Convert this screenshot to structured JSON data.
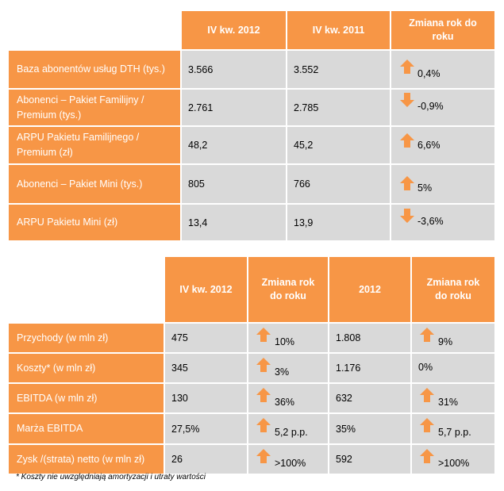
{
  "colors": {
    "header": "#f79646",
    "cell": "#d9d9d9",
    "arrow": "#f79646"
  },
  "table1": {
    "headers": [
      "IV kw. 2012",
      "IV kw. 2011",
      "Zmiana rok do roku"
    ],
    "rows": [
      {
        "label": "Baza abonentów usług DTH (tys.)",
        "v1": "3.566",
        "v2": "3.552",
        "change": "0,4%",
        "arrow": "up"
      },
      {
        "label": "Abonenci – Pakiet Familijny / Premium (tys.)",
        "v1": "2.761",
        "v2": "2.785",
        "change": "-0,9%",
        "arrow": "down"
      },
      {
        "label": "ARPU Pakietu Familijnego / Premium (zł)",
        "v1": "48,2",
        "v2": "45,2",
        "change": "6,6%",
        "arrow": "up"
      },
      {
        "label": "Abonenci – Pakiet Mini (tys.)",
        "v1": "805",
        "v2": "766",
        "change": "5%",
        "arrow": "up"
      },
      {
        "label": "ARPU Pakietu Mini (zł)",
        "v1": "13,4",
        "v2": "13,9",
        "change": "-3,6%",
        "arrow": "down"
      }
    ]
  },
  "table2": {
    "headers": [
      "IV kw. 2012",
      "Zmiana rok do roku",
      "2012",
      "Zmiana rok do roku"
    ],
    "rows": [
      {
        "label": "Przychody (w mln zł)",
        "q": "475",
        "qchange": "10%",
        "qarrow": "up",
        "y": "1.808",
        "ychange": "9%",
        "yarrow": "up"
      },
      {
        "label": "Koszty* (w mln zł)",
        "q": "345",
        "qchange": "3%",
        "qarrow": "up",
        "y": "1.176",
        "ychange": "0%",
        "yarrow": "none"
      },
      {
        "label": "EBITDA (w mln zł)",
        "q": "130",
        "qchange": "36%",
        "qarrow": "up",
        "y": "632",
        "ychange": "31%",
        "yarrow": "up"
      },
      {
        "label": "Marża EBITDA",
        "q": "27,5%",
        "qchange": "5,2 p.p.",
        "qarrow": "up",
        "y": "35%",
        "ychange": "5,7 p.p.",
        "yarrow": "up"
      },
      {
        "label": "Zysk /(strata) netto (w mln zł)",
        "q": "26",
        "qchange": ">100%",
        "qarrow": "up",
        "y": "592",
        "ychange": ">100%",
        "yarrow": "up"
      }
    ]
  },
  "footnote": "* Koszty nie uwzględniają amortyzacji i utraty wartości"
}
